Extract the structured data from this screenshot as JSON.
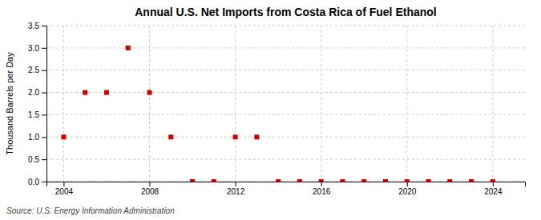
{
  "chart_data": {
    "type": "scatter",
    "title": "Annual U.S. Net Imports from Costa Rica of Fuel Ethanol",
    "ylabel": "Thousand Barrels per Day",
    "annotations": [
      "Source: U.S. Energy Information Administration"
    ],
    "x": [
      2004,
      2005,
      2006,
      2007,
      2008,
      2009,
      2010,
      2011,
      2012,
      2013,
      2014,
      2015,
      2016,
      2017,
      2018,
      2019,
      2020,
      2021,
      2022,
      2023,
      2024
    ],
    "values": [
      1.0,
      2.0,
      2.0,
      3.0,
      2.0,
      1.0,
      0.0,
      0.0,
      1.0,
      1.0,
      0.0,
      0.0,
      0.0,
      0.0,
      0.0,
      0.0,
      0.0,
      0.0,
      0.0,
      0.0,
      0.0
    ],
    "color": "#cc0000",
    "marker": "square",
    "xlim": [
      2003.2,
      2025.5
    ],
    "xticks": [
      2004,
      2008,
      2012,
      2016,
      2020,
      2024
    ],
    "ylim": [
      0.0,
      3.5
    ],
    "yticks": [
      {
        "value": 0.0,
        "label": "0.0"
      },
      0.5,
      {
        "value": 1.0,
        "label": "1.0"
      },
      1.5,
      {
        "value": 2.0,
        "label": "2.0"
      },
      2.5,
      {
        "value": 3.0,
        "label": "3.0"
      },
      3.5
    ],
    "grid": true
  }
}
